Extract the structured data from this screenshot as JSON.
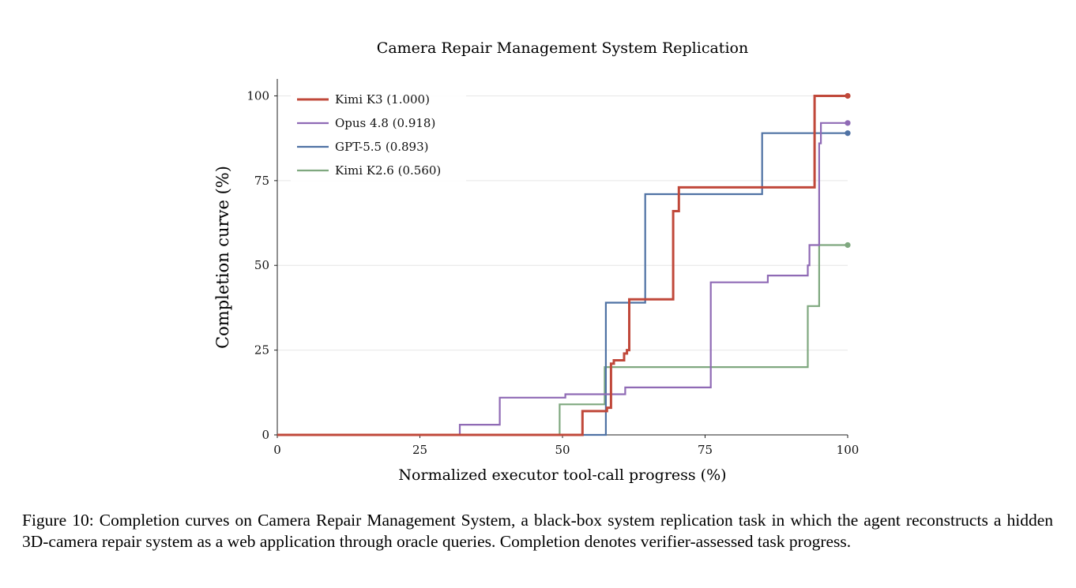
{
  "chart_data": {
    "type": "line",
    "step": true,
    "title": "Camera Repair Management System Replication",
    "xlabel": "Normalized executor tool-call progress (%)",
    "ylabel": "Completion curve (%)",
    "xlim": [
      0,
      100
    ],
    "ylim": [
      0,
      105
    ],
    "xticks": [
      0,
      25,
      50,
      75,
      100
    ],
    "yticks": [
      0,
      25,
      50,
      75,
      100
    ],
    "grid": "horizontal",
    "legend_position": "top-left",
    "series": [
      {
        "name": "Kimi K3 (1.000)",
        "color": "#c0483a",
        "points": [
          [
            0,
            0
          ],
          [
            53.5,
            0
          ],
          [
            53.5,
            7
          ],
          [
            57.8,
            7
          ],
          [
            57.8,
            8
          ],
          [
            58.5,
            8
          ],
          [
            58.5,
            21
          ],
          [
            59,
            21
          ],
          [
            59,
            22
          ],
          [
            60.8,
            22
          ],
          [
            60.8,
            24
          ],
          [
            61.3,
            24
          ],
          [
            61.3,
            25
          ],
          [
            61.7,
            25
          ],
          [
            61.7,
            40
          ],
          [
            69.4,
            40
          ],
          [
            69.4,
            66
          ],
          [
            70.4,
            66
          ],
          [
            70.4,
            73
          ],
          [
            94.2,
            73
          ],
          [
            94.2,
            100
          ],
          [
            100,
            100
          ]
        ]
      },
      {
        "name": "Opus 4.8 (0.918)",
        "color": "#8f6ab5",
        "points": [
          [
            0,
            0
          ],
          [
            32,
            0
          ],
          [
            32,
            3
          ],
          [
            39,
            3
          ],
          [
            39,
            11
          ],
          [
            50.5,
            11
          ],
          [
            50.5,
            12
          ],
          [
            61,
            12
          ],
          [
            61,
            14
          ],
          [
            76,
            14
          ],
          [
            76,
            45
          ],
          [
            86,
            45
          ],
          [
            86,
            47
          ],
          [
            93,
            47
          ],
          [
            93,
            50
          ],
          [
            93.3,
            50
          ],
          [
            93.3,
            56
          ],
          [
            95,
            56
          ],
          [
            95,
            86
          ],
          [
            95.3,
            86
          ],
          [
            95.3,
            92
          ],
          [
            100,
            92
          ]
        ]
      },
      {
        "name": "GPT-5.5 (0.893)",
        "color": "#4f72a4",
        "points": [
          [
            0,
            0
          ],
          [
            57.6,
            0
          ],
          [
            57.6,
            39
          ],
          [
            64.5,
            39
          ],
          [
            64.5,
            71
          ],
          [
            85,
            71
          ],
          [
            85,
            89
          ],
          [
            100,
            89
          ]
        ]
      },
      {
        "name": "Kimi K2.6 (0.560)",
        "color": "#7fa87f",
        "points": [
          [
            0,
            0
          ],
          [
            49.5,
            0
          ],
          [
            49.5,
            9
          ],
          [
            57.4,
            9
          ],
          [
            57.4,
            20
          ],
          [
            93,
            20
          ],
          [
            93,
            38
          ],
          [
            95,
            38
          ],
          [
            95,
            56
          ],
          [
            100,
            56
          ]
        ]
      }
    ]
  },
  "caption": "Figure 10: Completion curves on Camera Repair Management System, a black-box system replication task in which the agent reconstructs a hidden 3D-camera repair system as a web application through oracle queries. Completion denotes verifier-assessed task progress."
}
